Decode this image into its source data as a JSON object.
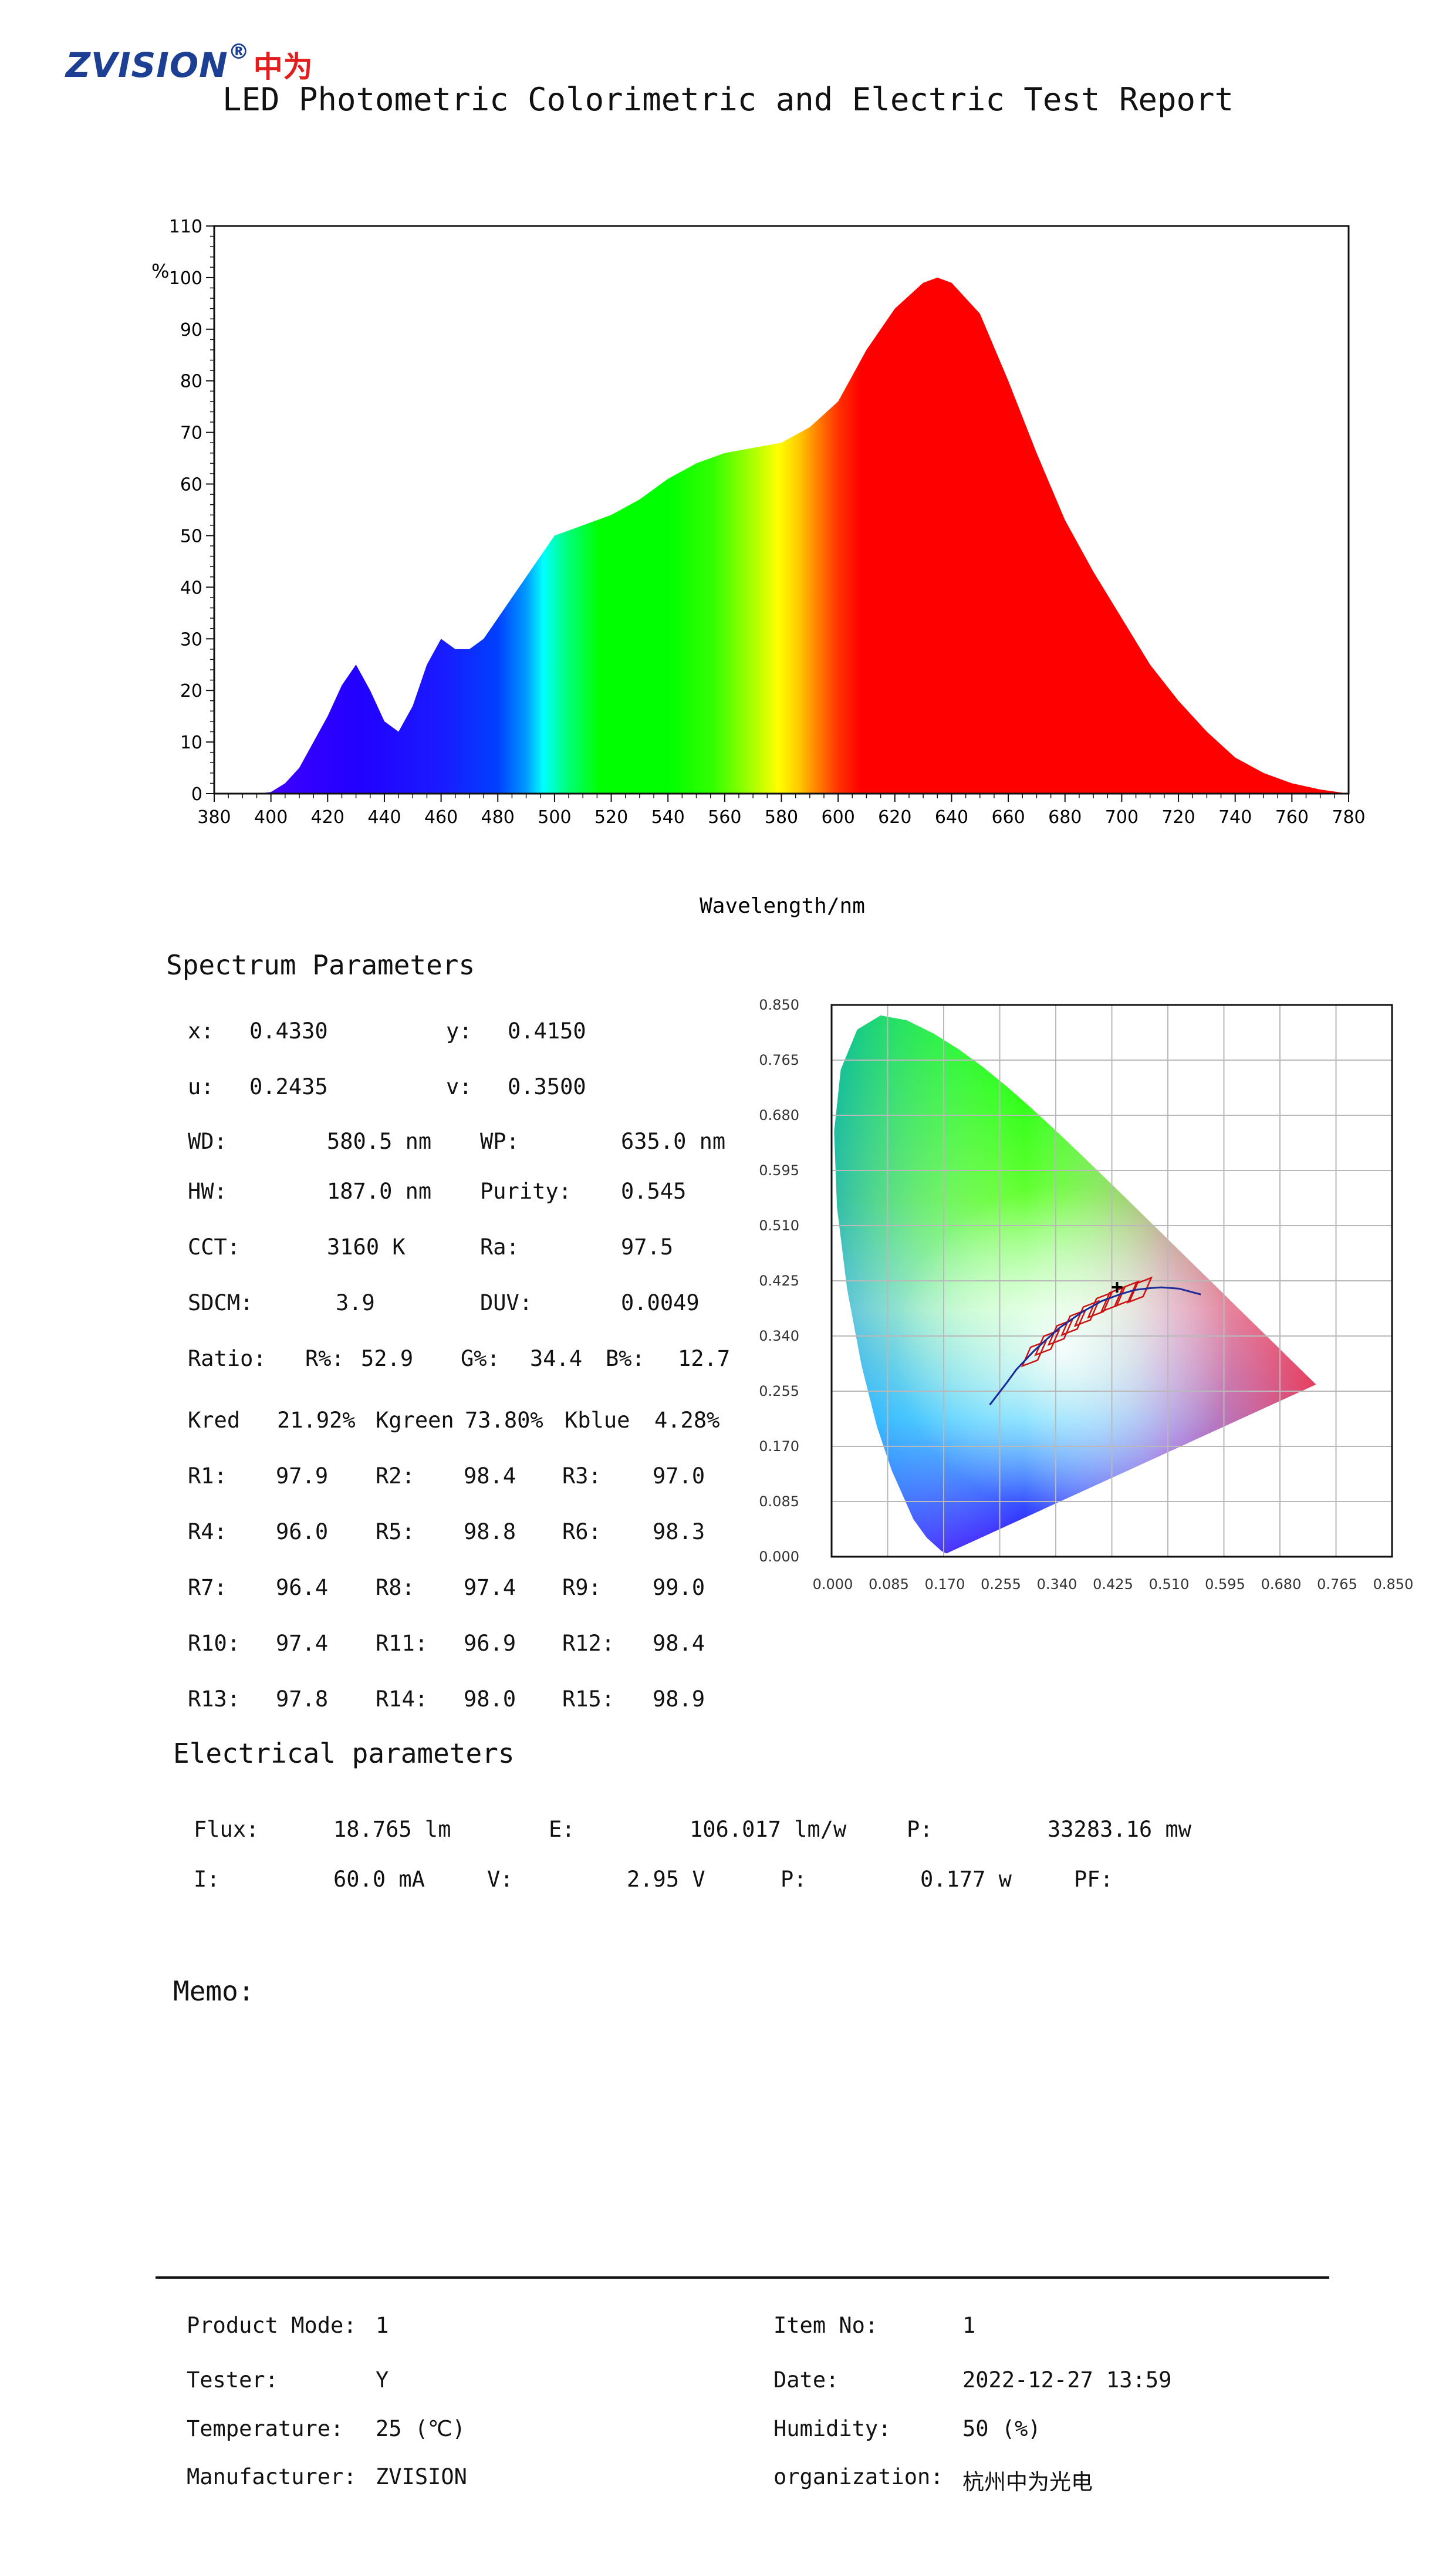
{
  "header": {
    "brand": "ZVISION",
    "registered": "®",
    "brand_cn": "中为",
    "title": "LED Photometric Colorimetric and Electric Test Report"
  },
  "chart_data": [
    {
      "type": "area",
      "title": "",
      "xlabel": "Wavelength/nm",
      "ylabel": "%",
      "xlim": [
        380,
        780
      ],
      "ylim": [
        0,
        110
      ],
      "x_ticks": [
        380,
        400,
        420,
        440,
        460,
        480,
        500,
        520,
        540,
        560,
        580,
        600,
        620,
        640,
        660,
        680,
        700,
        720,
        740,
        760,
        780
      ],
      "y_ticks": [
        0,
        10,
        20,
        30,
        40,
        50,
        60,
        70,
        80,
        90,
        100,
        110
      ],
      "fill": "visible-spectrum gradient by wavelength",
      "x": [
        380,
        395,
        400,
        405,
        410,
        415,
        420,
        425,
        430,
        435,
        440,
        445,
        450,
        455,
        460,
        465,
        470,
        475,
        480,
        485,
        490,
        495,
        500,
        505,
        510,
        520,
        530,
        540,
        550,
        560,
        570,
        580,
        590,
        600,
        610,
        620,
        630,
        635,
        640,
        650,
        660,
        670,
        680,
        690,
        700,
        710,
        720,
        730,
        740,
        750,
        760,
        770,
        775,
        780
      ],
      "y": [
        0,
        0,
        0.3,
        2,
        5,
        10,
        15,
        21,
        25,
        20,
        14,
        12,
        17,
        25,
        30,
        28,
        28,
        30,
        34,
        38,
        42,
        46,
        50,
        51,
        52,
        54,
        57,
        61,
        64,
        66,
        67,
        68,
        71,
        76,
        86,
        94,
        99,
        100,
        99,
        93,
        80,
        66,
        53,
        43,
        34,
        25,
        18,
        12,
        7,
        4,
        2,
        0.8,
        0.4,
        0
      ]
    },
    {
      "type": "scatter",
      "title": "",
      "xlabel": "",
      "ylabel": "",
      "xlim": [
        0,
        0.85
      ],
      "ylim": [
        0,
        0.85
      ],
      "x_ticks": [
        "0.000",
        "0.085",
        "0.170",
        "0.255",
        "0.340",
        "0.425",
        "0.510",
        "0.595",
        "0.680",
        "0.765",
        "0.850"
      ],
      "y_ticks": [
        "0.000",
        "0.085",
        "0.170",
        "0.255",
        "0.340",
        "0.425",
        "0.510",
        "0.595",
        "0.680",
        "0.765",
        "0.850"
      ],
      "background": "CIE 1931 chromaticity diagram",
      "locus": [
        [
          0.1741,
          0.005
        ],
        [
          0.1666,
          0.0089
        ],
        [
          0.144,
          0.0297
        ],
        [
          0.1241,
          0.0578
        ],
        [
          0.0913,
          0.1327
        ],
        [
          0.0687,
          0.2007
        ],
        [
          0.0454,
          0.295
        ],
        [
          0.0235,
          0.4127
        ],
        [
          0.0082,
          0.5384
        ],
        [
          0.0039,
          0.6548
        ],
        [
          0.0139,
          0.7502
        ],
        [
          0.0389,
          0.812
        ],
        [
          0.0743,
          0.8338
        ],
        [
          0.1142,
          0.8262
        ],
        [
          0.1547,
          0.8059
        ],
        [
          0.1929,
          0.7816
        ],
        [
          0.2296,
          0.7543
        ],
        [
          0.2658,
          0.7243
        ],
        [
          0.3016,
          0.6923
        ],
        [
          0.3373,
          0.6589
        ],
        [
          0.3731,
          0.6245
        ],
        [
          0.4087,
          0.5896
        ],
        [
          0.4441,
          0.5547
        ],
        [
          0.4788,
          0.5202
        ],
        [
          0.5125,
          0.4866
        ],
        [
          0.5448,
          0.4544
        ],
        [
          0.5752,
          0.4242
        ],
        [
          0.6029,
          0.3965
        ],
        [
          0.627,
          0.3725
        ],
        [
          0.6482,
          0.3514
        ],
        [
          0.6658,
          0.334
        ],
        [
          0.6801,
          0.3197
        ],
        [
          0.6915,
          0.3083
        ],
        [
          0.7006,
          0.2993
        ],
        [
          0.7079,
          0.292
        ],
        [
          0.714,
          0.2859
        ],
        [
          0.719,
          0.2809
        ],
        [
          0.723,
          0.277
        ],
        [
          0.726,
          0.274
        ],
        [
          0.7347,
          0.2653
        ]
      ],
      "planckian": [
        [
          0.24,
          0.234
        ],
        [
          0.265,
          0.267
        ],
        [
          0.28,
          0.288
        ],
        [
          0.306,
          0.316
        ],
        [
          0.323,
          0.332
        ],
        [
          0.345,
          0.352
        ],
        [
          0.38,
          0.377
        ],
        [
          0.41,
          0.394
        ],
        [
          0.437,
          0.404
        ],
        [
          0.46,
          0.411
        ],
        [
          0.485,
          0.414
        ],
        [
          0.5,
          0.415
        ],
        [
          0.527,
          0.413
        ],
        [
          0.56,
          0.404
        ]
      ],
      "bins": [
        [
          0.3,
          0.31
        ],
        [
          0.32,
          0.327
        ],
        [
          0.34,
          0.343
        ],
        [
          0.36,
          0.358
        ],
        [
          0.38,
          0.372
        ],
        [
          0.4,
          0.385
        ],
        [
          0.42,
          0.394
        ],
        [
          0.44,
          0.402
        ],
        [
          0.46,
          0.408
        ]
      ],
      "point": [
        0.433,
        0.415
      ]
    }
  ],
  "spectrum": {
    "heading": "Spectrum Parameters",
    "rows": [
      [
        [
          "x:",
          "0.4330"
        ],
        [
          "y:",
          "0.4150"
        ]
      ],
      [
        [
          "u:",
          "0.2435"
        ],
        [
          "v:",
          "0.3500"
        ]
      ],
      [
        [
          "WD:",
          "580.5 nm"
        ],
        [
          "WP:",
          "635.0 nm"
        ]
      ],
      [
        [
          "HW:",
          "187.0 nm"
        ],
        [
          "Purity:",
          "0.545"
        ]
      ],
      [
        [
          "CCT:",
          "3160 K"
        ],
        [
          "Ra:",
          "97.5"
        ]
      ],
      [
        [
          "SDCM:",
          "3.9"
        ],
        [
          "DUV:",
          "0.0049"
        ]
      ]
    ],
    "ratio_label": "Ratio:",
    "ratio": [
      [
        "R%:",
        "52.9"
      ],
      [
        "G%:",
        "34.4"
      ],
      [
        "B%:",
        "12.7"
      ]
    ],
    "k": [
      [
        "Kred",
        "21.92%"
      ],
      [
        "Kgreen",
        "73.80%"
      ],
      [
        "Kblue",
        "4.28%"
      ]
    ],
    "r": [
      [
        [
          "R1:",
          "97.9"
        ],
        [
          "R2:",
          "98.4"
        ],
        [
          "R3:",
          "97.0"
        ]
      ],
      [
        [
          "R4:",
          "96.0"
        ],
        [
          "R5:",
          "98.8"
        ],
        [
          "R6:",
          "98.3"
        ]
      ],
      [
        [
          "R7:",
          "96.4"
        ],
        [
          "R8:",
          "97.4"
        ],
        [
          "R9:",
          "99.0"
        ]
      ],
      [
        [
          "R10:",
          "97.4"
        ],
        [
          "R11:",
          "96.9"
        ],
        [
          "R12:",
          "98.4"
        ]
      ],
      [
        [
          "R13:",
          "97.8"
        ],
        [
          "R14:",
          "98.0"
        ],
        [
          "R15:",
          "98.9"
        ]
      ]
    ]
  },
  "electrical": {
    "heading": "Electrical parameters",
    "row1": [
      [
        "Flux:",
        "18.765 lm"
      ],
      [
        "E:",
        "106.017 lm/w"
      ],
      [
        "P:",
        "33283.16 mw"
      ]
    ],
    "row2": [
      [
        "I:",
        "60.0 mA"
      ],
      [
        "V:",
        "2.95 V"
      ],
      [
        "P:",
        "0.177 w"
      ],
      [
        "PF:",
        ""
      ]
    ]
  },
  "memo": {
    "label": "Memo:"
  },
  "footer": {
    "left": [
      [
        "Product Mode:",
        "1"
      ],
      [
        "Tester:",
        "Y"
      ],
      [
        "Temperature:",
        "25 (℃)"
      ],
      [
        "Manufacturer:",
        "ZVISION"
      ]
    ],
    "right": [
      [
        "Item No:",
        "1"
      ],
      [
        "Date:",
        "2022-12-27 13:59"
      ],
      [
        "Humidity:",
        "50 (%)"
      ],
      [
        "organization:",
        "杭州中为光电"
      ]
    ]
  }
}
